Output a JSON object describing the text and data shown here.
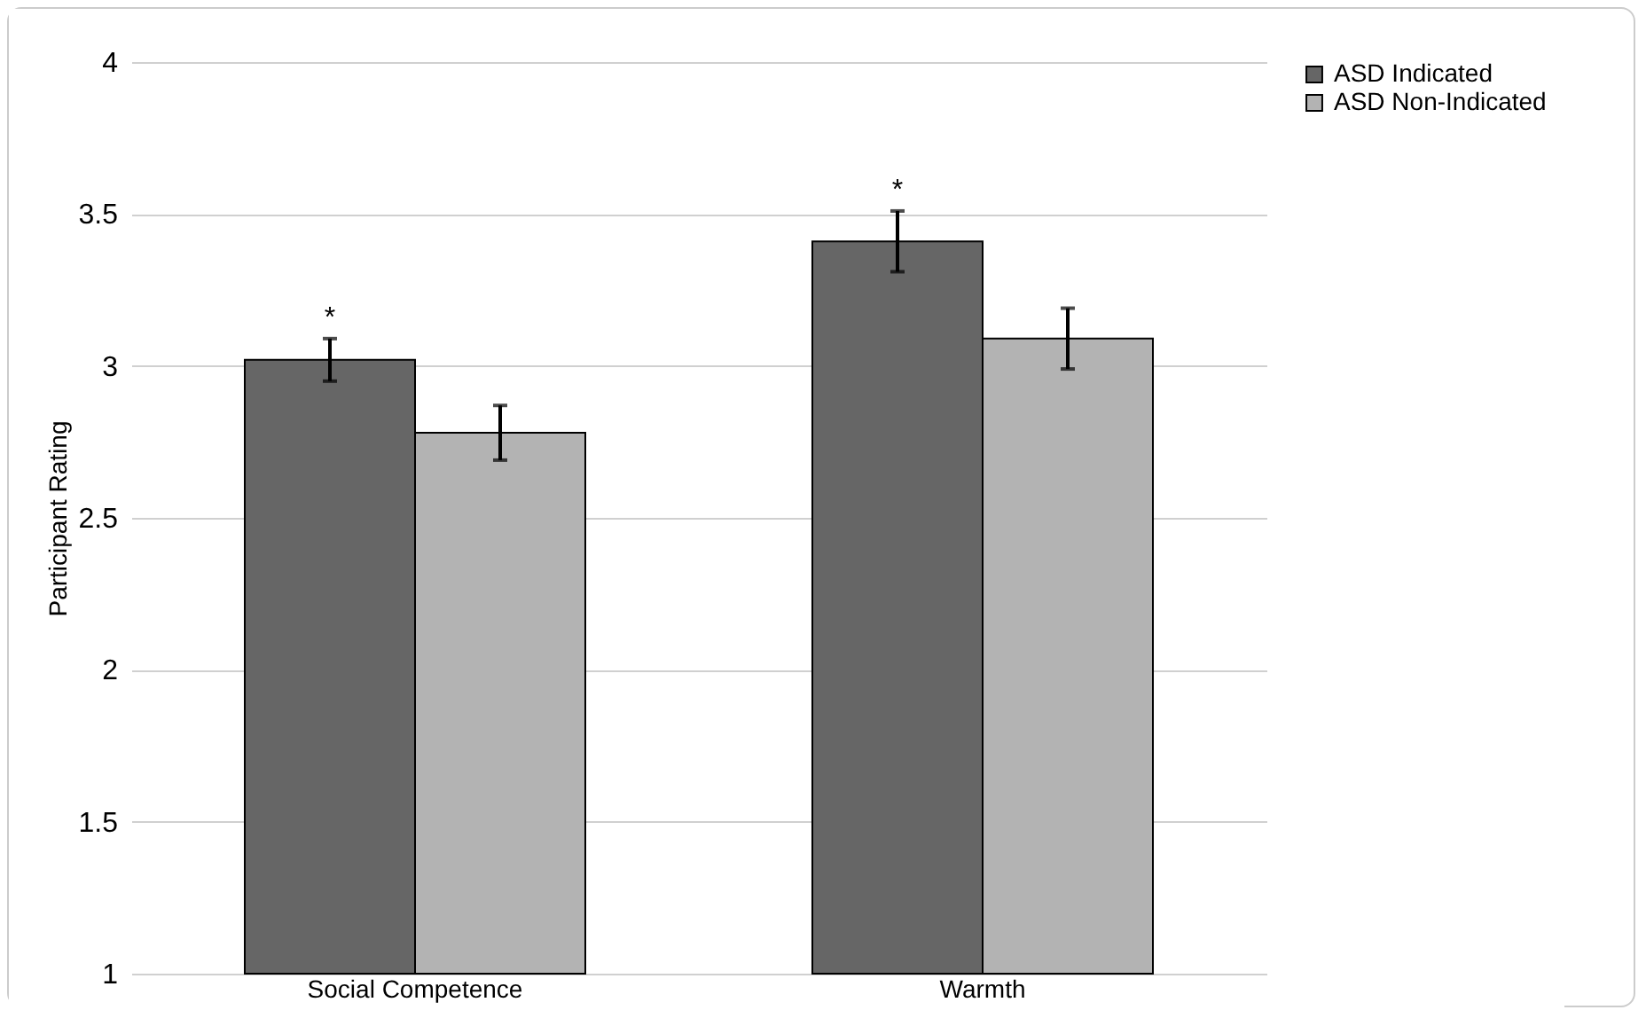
{
  "chart_data": {
    "type": "bar",
    "ylabel": "Participant Rating",
    "categories": [
      "Social Competence",
      "Warmth"
    ],
    "series": [
      {
        "name": "ASD Indicated",
        "color": "#666666",
        "values": [
          3.02,
          3.41
        ],
        "errors": [
          0.07,
          0.1
        ]
      },
      {
        "name": "ASD Non-Indicated",
        "color": "#b3b3b3",
        "values": [
          2.78,
          3.09
        ],
        "errors": [
          0.09,
          0.1
        ]
      }
    ],
    "annotations": [
      "*",
      "*"
    ],
    "ylim": [
      1,
      4
    ],
    "yticks": [
      1,
      1.5,
      2,
      2.5,
      3,
      3.5,
      4
    ],
    "grid": "y",
    "legend": "right"
  }
}
